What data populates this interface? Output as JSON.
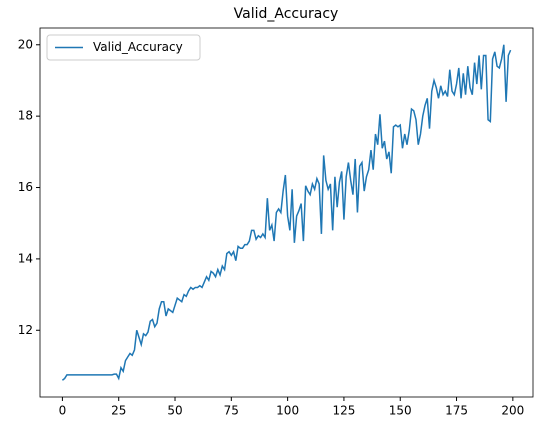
{
  "chart_data": {
    "type": "line",
    "title": "Valid_Accuracy",
    "x": [
      0,
      1,
      2,
      3,
      4,
      5,
      6,
      7,
      8,
      9,
      10,
      11,
      12,
      13,
      14,
      15,
      16,
      17,
      18,
      19,
      20,
      21,
      22,
      23,
      24,
      25,
      26,
      27,
      28,
      29,
      30,
      31,
      32,
      33,
      34,
      35,
      36,
      37,
      38,
      39,
      40,
      41,
      42,
      43,
      44,
      45,
      46,
      47,
      48,
      49,
      50,
      51,
      52,
      53,
      54,
      55,
      56,
      57,
      58,
      59,
      60,
      61,
      62,
      63,
      64,
      65,
      66,
      67,
      68,
      69,
      70,
      71,
      72,
      73,
      74,
      75,
      76,
      77,
      78,
      79,
      80,
      81,
      82,
      83,
      84,
      85,
      86,
      87,
      88,
      89,
      90,
      91,
      92,
      93,
      94,
      95,
      96,
      97,
      98,
      99,
      100,
      101,
      102,
      103,
      104,
      105,
      106,
      107,
      108,
      109,
      110,
      111,
      112,
      113,
      114,
      115,
      116,
      117,
      118,
      119,
      120,
      121,
      122,
      123,
      124,
      125,
      126,
      127,
      128,
      129,
      130,
      131,
      132,
      133,
      134,
      135,
      136,
      137,
      138,
      139,
      140,
      141,
      142,
      143,
      144,
      145,
      146,
      147,
      148,
      149,
      150,
      151,
      152,
      153,
      154,
      155,
      156,
      157,
      158,
      159,
      160,
      161,
      162,
      163,
      164,
      165,
      166,
      167,
      168,
      169,
      170,
      171,
      172,
      173,
      174,
      175,
      176,
      177,
      178,
      179,
      180,
      181,
      182,
      183,
      184,
      185,
      186,
      187,
      188,
      189,
      190,
      191,
      192,
      193,
      194,
      195,
      196,
      197,
      198,
      199
    ],
    "series": [
      {
        "name": "Valid_Accuracy",
        "color": "#1f77b4",
        "values": [
          10.6,
          10.65,
          10.75,
          10.75,
          10.75,
          10.75,
          10.75,
          10.75,
          10.75,
          10.75,
          10.75,
          10.75,
          10.75,
          10.75,
          10.75,
          10.75,
          10.75,
          10.75,
          10.75,
          10.75,
          10.75,
          10.75,
          10.75,
          10.77,
          10.77,
          10.65,
          10.95,
          10.85,
          11.15,
          11.25,
          11.35,
          11.3,
          11.45,
          12.0,
          11.8,
          11.6,
          11.9,
          11.85,
          11.95,
          12.25,
          12.3,
          12.1,
          12.2,
          12.6,
          12.8,
          12.8,
          12.4,
          12.6,
          12.55,
          12.5,
          12.7,
          12.9,
          12.85,
          12.8,
          13.0,
          12.95,
          13.1,
          13.2,
          13.15,
          13.2,
          13.2,
          13.25,
          13.2,
          13.35,
          13.5,
          13.4,
          13.65,
          13.6,
          13.5,
          13.7,
          13.55,
          13.8,
          13.7,
          14.15,
          14.2,
          14.1,
          14.2,
          13.95,
          14.35,
          14.3,
          14.3,
          14.4,
          14.4,
          14.5,
          14.8,
          14.8,
          14.55,
          14.65,
          14.6,
          14.7,
          14.6,
          15.7,
          14.8,
          14.95,
          14.5,
          15.3,
          15.4,
          15.3,
          15.9,
          16.35,
          15.2,
          14.8,
          15.95,
          14.45,
          15.2,
          15.35,
          15.55,
          14.5,
          16.05,
          15.9,
          15.8,
          16.1,
          15.95,
          16.25,
          16.1,
          14.7,
          16.9,
          16.2,
          15.95,
          16.1,
          14.8,
          16.3,
          15.45,
          16.15,
          16.45,
          15.1,
          16.3,
          16.7,
          16.2,
          15.8,
          16.8,
          15.3,
          16.6,
          16.7,
          15.9,
          16.3,
          16.5,
          17.05,
          16.5,
          17.5,
          17.2,
          18.05,
          17.1,
          17.3,
          16.8,
          17.0,
          16.4,
          17.7,
          17.75,
          17.7,
          17.75,
          17.1,
          17.5,
          17.2,
          17.6,
          18.2,
          18.15,
          17.9,
          17.2,
          17.5,
          18.0,
          18.3,
          18.5,
          17.65,
          18.7,
          19.0,
          18.8,
          18.5,
          18.85,
          18.6,
          18.7,
          18.55,
          19.3,
          18.7,
          18.6,
          18.9,
          19.35,
          18.5,
          19.2,
          18.6,
          19.4,
          18.8,
          18.6,
          19.5,
          18.9,
          19.7,
          18.75,
          19.7,
          19.7,
          17.9,
          17.85,
          19.6,
          19.8,
          19.4,
          19.35,
          19.6,
          20.0,
          18.4,
          19.7,
          19.85
        ]
      }
    ],
    "xlim": [
      -9.95,
      208.95
    ],
    "xticks": [
      0,
      25,
      50,
      75,
      100,
      125,
      150,
      175,
      200
    ],
    "ylim": [
      10.13,
      20.47
    ],
    "yticks": [
      12,
      14,
      16,
      18,
      20
    ],
    "legend": "upper left"
  }
}
